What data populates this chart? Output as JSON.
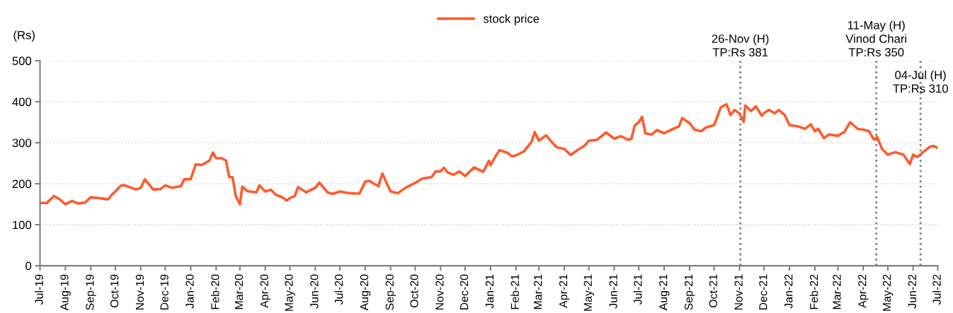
{
  "chart_data": {
    "type": "line",
    "ylabel": "(Rs)",
    "x": [
      "2019-07-25",
      "2019-08-02",
      "2019-08-11",
      "2019-08-18",
      "2019-08-25",
      "2019-09-02",
      "2019-09-09",
      "2019-09-18",
      "2019-09-25",
      "2019-10-05",
      "2019-10-16",
      "2019-10-22",
      "2019-10-25",
      "2019-11-01",
      "2019-11-05",
      "2019-11-11",
      "2019-11-19",
      "2019-11-25",
      "2019-11-30",
      "2019-12-10",
      "2019-12-19",
      "2019-12-25",
      "2020-01-02",
      "2020-01-13",
      "2020-01-17",
      "2020-01-25",
      "2020-01-31",
      "2020-02-08",
      "2020-02-17",
      "2020-02-21",
      "2020-02-25",
      "2020-03-03",
      "2020-03-08",
      "2020-03-12",
      "2020-03-16",
      "2020-03-20",
      "2020-03-25",
      "2020-03-28",
      "2020-04-03",
      "2020-04-14",
      "2020-04-18",
      "2020-04-25",
      "2020-05-02",
      "2020-05-08",
      "2020-05-16",
      "2020-05-21",
      "2020-05-25",
      "2020-05-31",
      "2020-06-04",
      "2020-06-14",
      "2020-06-25",
      "2020-06-30",
      "2020-07-10",
      "2020-07-16",
      "2020-07-25",
      "2020-08-05",
      "2020-08-18",
      "2020-08-25",
      "2020-08-30",
      "2020-09-10",
      "2020-09-15",
      "2020-09-20",
      "2020-09-25",
      "2020-10-04",
      "2020-10-13",
      "2020-10-25",
      "2020-11-03",
      "2020-11-14",
      "2020-11-19",
      "2020-11-25",
      "2020-11-29",
      "2020-12-04",
      "2020-12-11",
      "2020-12-18",
      "2020-12-25",
      "2021-01-05",
      "2021-01-16",
      "2021-01-23",
      "2021-01-25",
      "2021-02-02",
      "2021-02-05",
      "2021-02-14",
      "2021-02-20",
      "2021-02-25",
      "2021-03-07",
      "2021-03-16",
      "2021-03-20",
      "2021-03-25",
      "2021-04-03",
      "2021-04-10",
      "2021-04-16",
      "2021-04-25",
      "2021-05-03",
      "2021-05-11",
      "2021-05-20",
      "2021-05-25",
      "2021-06-04",
      "2021-06-15",
      "2021-06-25",
      "2021-07-03",
      "2021-07-12",
      "2021-07-16",
      "2021-07-20",
      "2021-07-25",
      "2021-07-29",
      "2021-08-02",
      "2021-08-10",
      "2021-08-16",
      "2021-08-25",
      "2021-09-02",
      "2021-09-12",
      "2021-09-16",
      "2021-09-25",
      "2021-10-01",
      "2021-10-09",
      "2021-10-15",
      "2021-10-25",
      "2021-11-02",
      "2021-11-09",
      "2021-11-14",
      "2021-11-19",
      "2021-11-25",
      "2021-11-30",
      "2021-12-02",
      "2021-12-09",
      "2021-12-15",
      "2021-12-22",
      "2021-12-26",
      "2021-12-31",
      "2022-01-07",
      "2022-01-12",
      "2022-01-19",
      "2022-01-25",
      "2022-02-04",
      "2022-02-13",
      "2022-02-20",
      "2022-02-25",
      "2022-03-01",
      "2022-03-08",
      "2022-03-14",
      "2022-03-25",
      "2022-04-02",
      "2022-04-09",
      "2022-04-18",
      "2022-04-25",
      "2022-05-02",
      "2022-05-08",
      "2022-05-12",
      "2022-05-18",
      "2022-05-25",
      "2022-06-03",
      "2022-06-13",
      "2022-06-21",
      "2022-06-25",
      "2022-06-30",
      "2022-07-07",
      "2022-07-16",
      "2022-07-20",
      "2022-07-25"
    ],
    "series": [
      {
        "name": "stock price",
        "color": "#ff5b2e",
        "values": [
          153,
          153,
          170,
          162,
          150,
          158,
          152,
          154,
          167,
          165,
          162,
          176,
          181,
          196,
          196,
          192,
          186,
          190,
          211,
          186,
          187,
          196,
          190,
          194,
          211,
          211,
          247,
          246,
          257,
          276,
          262,
          262,
          256,
          216,
          216,
          170,
          150,
          193,
          182,
          179,
          196,
          181,
          185,
          173,
          167,
          159,
          165,
          170,
          192,
          179,
          190,
          203,
          179,
          175,
          181,
          177,
          176,
          205,
          207,
          194,
          225,
          202,
          181,
          177,
          190,
          202,
          213,
          216,
          230,
          230,
          239,
          227,
          222,
          230,
          219,
          240,
          229,
          256,
          245,
          273,
          282,
          276,
          267,
          269,
          279,
          302,
          326,
          305,
          318,
          301,
          289,
          285,
          270,
          282,
          293,
          305,
          307,
          325,
          310,
          316,
          307,
          310,
          342,
          350,
          363,
          323,
          320,
          331,
          323,
          331,
          340,
          360,
          348,
          332,
          328,
          337,
          343,
          386,
          394,
          368,
          380,
          371,
          351,
          391,
          377,
          389,
          366,
          374,
          380,
          372,
          380,
          368,
          343,
          340,
          334,
          345,
          328,
          334,
          311,
          320,
          317,
          326,
          350,
          334,
          332,
          328,
          308,
          314,
          285,
          271,
          277,
          271,
          248,
          271,
          265,
          277,
          291,
          292,
          287
        ]
      }
    ],
    "xlim": [
      "2019-07-25",
      "2022-07-25"
    ],
    "xticks": [
      {
        "value": "2019-07-25",
        "label": "Jul-19"
      },
      {
        "value": "2019-08-25",
        "label": "Aug-19"
      },
      {
        "value": "2019-09-25",
        "label": "Sep-19"
      },
      {
        "value": "2019-10-25",
        "label": "Oct-19"
      },
      {
        "value": "2019-11-25",
        "label": "Nov-19"
      },
      {
        "value": "2019-12-25",
        "label": "Dec-19"
      },
      {
        "value": "2020-01-25",
        "label": "Jan-20"
      },
      {
        "value": "2020-02-25",
        "label": "Feb-20"
      },
      {
        "value": "2020-03-25",
        "label": "Mar-20"
      },
      {
        "value": "2020-04-25",
        "label": "Apr-20"
      },
      {
        "value": "2020-05-25",
        "label": "May-20"
      },
      {
        "value": "2020-06-25",
        "label": "Jun-20"
      },
      {
        "value": "2020-07-25",
        "label": "Jul-20"
      },
      {
        "value": "2020-08-25",
        "label": "Aug-20"
      },
      {
        "value": "2020-09-25",
        "label": "Sep-20"
      },
      {
        "value": "2020-10-25",
        "label": "Oct-20"
      },
      {
        "value": "2020-11-25",
        "label": "Nov-20"
      },
      {
        "value": "2020-12-25",
        "label": "Dec-20"
      },
      {
        "value": "2021-01-25",
        "label": "Jan-21"
      },
      {
        "value": "2021-02-25",
        "label": "Feb-21"
      },
      {
        "value": "2021-03-25",
        "label": "Mar-21"
      },
      {
        "value": "2021-04-25",
        "label": "Apr-21"
      },
      {
        "value": "2021-05-25",
        "label": "May-21"
      },
      {
        "value": "2021-06-25",
        "label": "Jun-21"
      },
      {
        "value": "2021-07-25",
        "label": "Jul-21"
      },
      {
        "value": "2021-08-25",
        "label": "Aug-21"
      },
      {
        "value": "2021-09-25",
        "label": "Sep-21"
      },
      {
        "value": "2021-10-25",
        "label": "Oct-21"
      },
      {
        "value": "2021-11-25",
        "label": "Nov-21"
      },
      {
        "value": "2021-12-25",
        "label": "Dec-21"
      },
      {
        "value": "2022-01-25",
        "label": "Jan-22"
      },
      {
        "value": "2022-02-25",
        "label": "Feb-22"
      },
      {
        "value": "2022-03-25",
        "label": "Mar-22"
      },
      {
        "value": "2022-04-25",
        "label": "Apr-22"
      },
      {
        "value": "2022-05-25",
        "label": "May-22"
      },
      {
        "value": "2022-06-25",
        "label": "Jun-22"
      },
      {
        "value": "2022-07-25",
        "label": "Jul-22"
      }
    ],
    "ylim": [
      0,
      500
    ],
    "yticks": [
      0,
      100,
      200,
      300,
      400,
      500
    ],
    "ref_lines": [
      {
        "axis": "x",
        "value": "2021-11-26",
        "label": "26-Nov (H)\nTP:Rs 381",
        "color": "#808080",
        "line_style": "dotted"
      },
      {
        "axis": "x",
        "value": "2022-05-11",
        "label": "11-May (H)\nVinod Chari\nTP:Rs 350",
        "color": "#808080",
        "line_style": "dotted"
      },
      {
        "axis": "x",
        "value": "2022-07-04",
        "label": "04-Jul (H)\nTP:Rs 310",
        "color": "#808080",
        "line_style": "dotted"
      }
    ],
    "grid": "y",
    "legend": "top",
    "marker": "none",
    "line_style": "solid"
  }
}
